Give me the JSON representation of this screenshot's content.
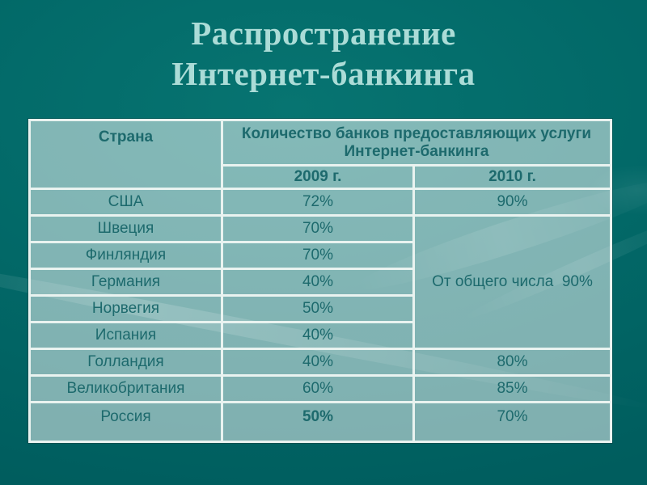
{
  "slide": {
    "title_line1": "Распространение",
    "title_line2": "Интернет-банкинга",
    "colors": {
      "background": "#026968",
      "cell_background": "#7fb1ae",
      "cell_border": "#e9f3f0",
      "cell_text": "#1d6a6d",
      "title_text": "#abdcd7"
    }
  },
  "table": {
    "header": {
      "country": "Страна",
      "banks": "Количество банков предоставляющих услуги Интернет-банкинга",
      "year_2009": "2009 г.",
      "year_2010": "2010 г."
    },
    "merged_note": "От общего числа  90%",
    "rows": [
      {
        "country": "США",
        "y2009": "72%",
        "y2010": "90%"
      },
      {
        "country": "Швеция",
        "y2009": "70%"
      },
      {
        "country": "Финляндия",
        "y2009": "70%"
      },
      {
        "country": "Германия",
        "y2009": "40%"
      },
      {
        "country": "Норвегия",
        "y2009": "50%"
      },
      {
        "country": "Испания",
        "y2009": "40%"
      },
      {
        "country": "Голландия",
        "y2009": "40%",
        "y2010": "80%"
      },
      {
        "country": "Великобритания",
        "y2009": "60%",
        "y2010": "85%"
      },
      {
        "country": "Россия",
        "y2009": "50%",
        "y2010": "70%"
      }
    ]
  }
}
